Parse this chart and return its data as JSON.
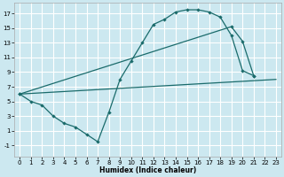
{
  "xlabel": "Humidex (Indice chaleur)",
  "bg_color": "#cce8f0",
  "grid_color": "#ffffff",
  "line_color": "#1a6b6b",
  "xlim": [
    -0.5,
    23.5
  ],
  "ylim": [
    -2.5,
    18.5
  ],
  "xticks": [
    0,
    1,
    2,
    3,
    4,
    5,
    6,
    7,
    8,
    9,
    10,
    11,
    12,
    13,
    14,
    15,
    16,
    17,
    18,
    19,
    20,
    21,
    22,
    23
  ],
  "yticks": [
    -1,
    1,
    3,
    5,
    7,
    9,
    11,
    13,
    15,
    17
  ],
  "curve1_x": [
    0,
    1,
    2,
    3,
    4,
    5,
    6,
    7,
    8,
    9,
    10,
    11,
    12,
    13,
    14,
    15,
    16,
    17,
    18,
    19,
    20,
    21
  ],
  "curve1_y": [
    6,
    5,
    4.5,
    3,
    2,
    1.5,
    0.5,
    -0.5,
    3.5,
    8,
    10.5,
    13,
    15.5,
    16.2,
    17.2,
    17.5,
    17.5,
    17.2,
    16.5,
    14,
    9.2,
    8.5
  ],
  "curve2_x": [
    0,
    19,
    20,
    21
  ],
  "curve2_y": [
    6,
    15.2,
    13.2,
    8.5
  ],
  "curve3_x": [
    0,
    23
  ],
  "curve3_y": [
    6,
    8.0
  ],
  "marker_x": [
    0,
    1,
    2,
    3,
    4,
    5,
    6,
    7,
    8,
    9,
    10,
    11,
    12,
    13,
    14,
    15,
    16,
    17,
    18,
    19,
    20,
    21
  ],
  "marker_y": [
    6,
    5,
    4.5,
    3,
    2,
    1.5,
    0.5,
    -0.5,
    3.5,
    8,
    10.5,
    13,
    15.5,
    16.2,
    17.2,
    17.5,
    17.5,
    17.2,
    16.5,
    14,
    9.2,
    8.5
  ]
}
